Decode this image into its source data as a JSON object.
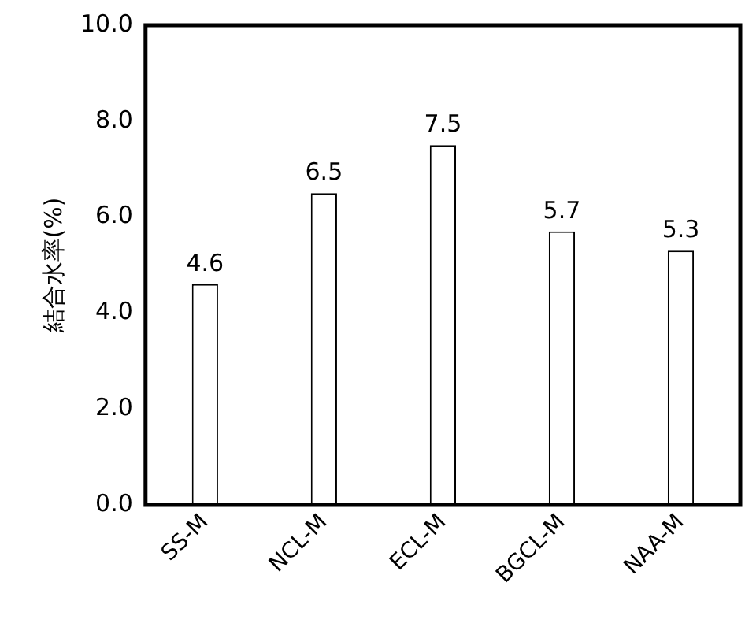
{
  "chart_data": {
    "type": "bar",
    "ylabel": "結合水率(%)",
    "categories": [
      "SS-M",
      "NCL-M",
      "ECL-M",
      "BGCL-M",
      "NAA-M"
    ],
    "values": [
      4.6,
      6.5,
      7.5,
      5.7,
      5.3
    ],
    "color": "#ffffff",
    "data_labels": true,
    "ylim": [
      0,
      10
    ],
    "yticks": [
      {
        "value": 0,
        "label": "0.0"
      },
      {
        "value": 2,
        "label": "2.0"
      },
      {
        "value": 4,
        "label": "4.0"
      },
      {
        "value": 6,
        "label": "6.0"
      },
      {
        "value": 8,
        "label": "8.0"
      },
      {
        "value": 10,
        "label": "10.0"
      }
    ],
    "grid": false,
    "legend": false
  }
}
